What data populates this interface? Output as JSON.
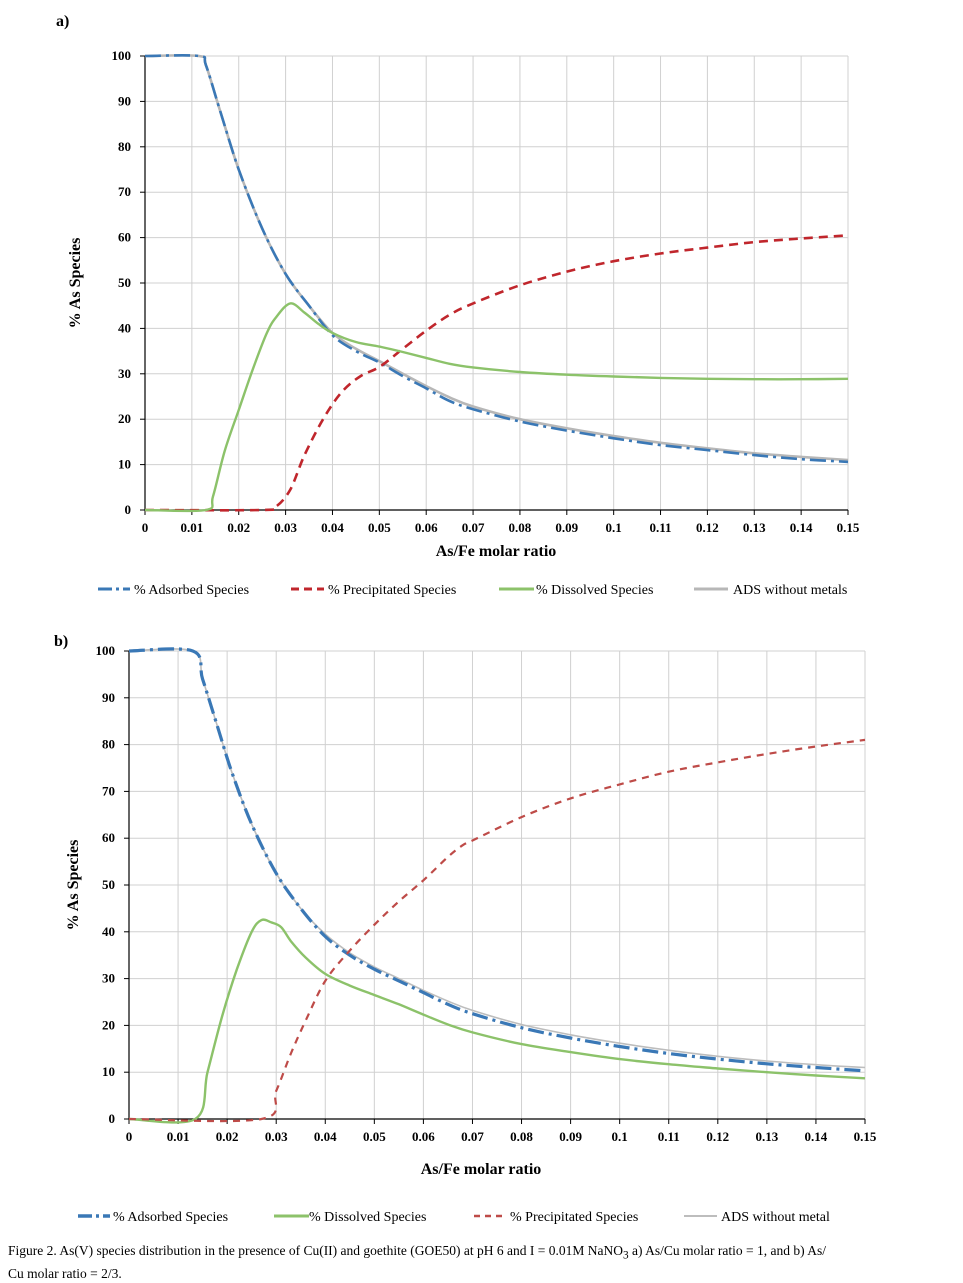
{
  "figure": {
    "caption_lines": [
      "Figure 2. As(V) species distribution in the presence of Cu(II) and goethite (GOE50) at pH 6 and  I = 0.01M NaNO",
      "3",
      " a) As/Cu molar ratio = 1, and b) As/",
      "Cu molar ratio = 2/3."
    ]
  },
  "colors": {
    "adsorbed": "#3a78b6",
    "precipitated_a": "#c0262c",
    "precipitated_b": "#be4b48",
    "dissolved": "#8cc26a",
    "ads_without_a": "#b7b7b7",
    "ads_without_b": "#bdbdbd",
    "grid": "#d0d0d0"
  },
  "chart_data": [
    {
      "panel_label": "a)",
      "type": "line",
      "xlabel": "As/Fe molar ratio",
      "ylabel": "% As Species",
      "xlim": [
        0,
        0.15
      ],
      "ylim": [
        0,
        100
      ],
      "xticks": [
        0,
        0.01,
        0.02,
        0.03,
        0.04,
        0.05,
        0.06,
        0.07,
        0.08,
        0.09,
        0.1,
        0.11,
        0.12,
        0.13,
        0.14,
        0.15
      ],
      "xtick_labels": [
        "0",
        "0.01",
        "0.02",
        "0.03",
        "0.04",
        "0.05",
        "0.06",
        "0.07",
        "0.08",
        "0.09",
        "0.1",
        "0.11",
        "0.12",
        "0.13",
        "0.14",
        "0.15"
      ],
      "yticks": [
        0,
        10,
        20,
        30,
        40,
        50,
        60,
        70,
        80,
        90,
        100
      ],
      "ytick_labels": [
        "0",
        "10",
        "20",
        "30",
        "40",
        "50",
        "60",
        "70",
        "80",
        "90",
        "100"
      ],
      "legend_position": "bottom",
      "series": [
        {
          "name": "% Adsorbed Species",
          "style": "dashdot",
          "color_key": "adsorbed",
          "x": [
            0,
            0.0115,
            0.013,
            0.016,
            0.02,
            0.025,
            0.03,
            0.035,
            0.04,
            0.045,
            0.05,
            0.055,
            0.06,
            0.065,
            0.07,
            0.08,
            0.09,
            0.1,
            0.11,
            0.12,
            0.13,
            0.14,
            0.15
          ],
          "y": [
            100,
            100,
            98,
            88,
            75,
            62,
            52,
            45,
            38.5,
            35,
            32.5,
            29.5,
            26.8,
            24,
            22.2,
            19.5,
            17.5,
            15.8,
            14.3,
            13.2,
            12.1,
            11.2,
            10.6
          ]
        },
        {
          "name": "% Precipitated Species",
          "style": "dash",
          "color_key": "precipitated_a",
          "x": [
            0,
            0.025,
            0.028,
            0.031,
            0.034,
            0.038,
            0.042,
            0.046,
            0.05,
            0.055,
            0.06,
            0.065,
            0.07,
            0.08,
            0.09,
            0.1,
            0.11,
            0.12,
            0.13,
            0.14,
            0.15
          ],
          "y": [
            0,
            0,
            0.8,
            4.5,
            12,
            20,
            26,
            29.5,
            31.5,
            35.5,
            39.5,
            43,
            45.5,
            49.5,
            52.5,
            54.8,
            56.5,
            57.8,
            59,
            59.8,
            60.5
          ]
        },
        {
          "name": "% Dissolved Species",
          "style": "solid",
          "color_key": "dissolved",
          "x": [
            0,
            0.013,
            0.0145,
            0.017,
            0.02,
            0.023,
            0.026,
            0.028,
            0.031,
            0.034,
            0.037,
            0.04,
            0.045,
            0.05,
            0.055,
            0.06,
            0.065,
            0.07,
            0.08,
            0.09,
            0.1,
            0.11,
            0.12,
            0.13,
            0.14,
            0.15
          ],
          "y": [
            0,
            0,
            3,
            13,
            22,
            31,
            39,
            42.5,
            45.5,
            43.5,
            41,
            39,
            37,
            36,
            34.8,
            33.5,
            32.2,
            31.4,
            30.4,
            29.8,
            29.4,
            29.1,
            28.9,
            28.8,
            28.8,
            28.9
          ]
        },
        {
          "name": "ADS without metals",
          "style": "solid",
          "color_key": "ads_without_a",
          "x": [
            0,
            0.0115,
            0.013,
            0.016,
            0.02,
            0.025,
            0.03,
            0.035,
            0.04,
            0.045,
            0.05,
            0.055,
            0.06,
            0.065,
            0.07,
            0.08,
            0.09,
            0.1,
            0.11,
            0.12,
            0.13,
            0.14,
            0.15
          ],
          "y": [
            100,
            100,
            98,
            88,
            75,
            62,
            52,
            45,
            39,
            35.5,
            32.8,
            30,
            27.3,
            24.8,
            22.8,
            20,
            18,
            16.3,
            14.8,
            13.6,
            12.5,
            11.7,
            11
          ]
        }
      ]
    },
    {
      "panel_label": "b)",
      "type": "line",
      "xlabel": "As/Fe molar ratio",
      "ylabel": "% As Species",
      "xlim": [
        0,
        0.15
      ],
      "ylim": [
        0,
        100
      ],
      "xticks": [
        0,
        0.01,
        0.02,
        0.03,
        0.04,
        0.05,
        0.06,
        0.07,
        0.08,
        0.09,
        0.1,
        0.11,
        0.12,
        0.13,
        0.14,
        0.15
      ],
      "xtick_labels": [
        "0",
        "0.01",
        "0.02",
        "0.03",
        "0.04",
        "0.05",
        "0.06",
        "0.07",
        "0.08",
        "0.09",
        "0.1",
        "0.11",
        "0.12",
        "0.13",
        "0.14",
        "0.15"
      ],
      "yticks": [
        0,
        10,
        20,
        30,
        40,
        50,
        60,
        70,
        80,
        90,
        100
      ],
      "ytick_labels": [
        "0",
        "10",
        "20",
        "30",
        "40",
        "50",
        "60",
        "70",
        "80",
        "90",
        "100"
      ],
      "legend_position": "bottom",
      "series": [
        {
          "name": "% Adsorbed Species",
          "style": "dashdot",
          "color_key": "adsorbed",
          "x": [
            0,
            0.013,
            0.015,
            0.018,
            0.021,
            0.025,
            0.03,
            0.035,
            0.04,
            0.045,
            0.05,
            0.055,
            0.06,
            0.065,
            0.07,
            0.08,
            0.09,
            0.1,
            0.11,
            0.12,
            0.13,
            0.14,
            0.15
          ],
          "y": [
            100,
            100,
            94,
            84,
            74,
            63,
            52.5,
            45,
            39,
            35,
            32,
            29.5,
            27,
            24.5,
            22.5,
            19.5,
            17.3,
            15.5,
            14,
            12.8,
            11.8,
            11,
            10.3
          ]
        },
        {
          "name": "% Dissolved Species",
          "style": "solid",
          "color_key": "dissolved",
          "x": [
            0,
            0.0135,
            0.016,
            0.019,
            0.022,
            0.025,
            0.027,
            0.029,
            0.031,
            0.033,
            0.036,
            0.04,
            0.045,
            0.05,
            0.055,
            0.06,
            0.065,
            0.07,
            0.08,
            0.09,
            0.1,
            0.11,
            0.12,
            0.13,
            0.14,
            0.15
          ],
          "y": [
            0,
            0,
            10,
            22,
            32,
            40,
            42.5,
            42,
            41,
            38,
            34.5,
            31,
            28.5,
            26.5,
            24.5,
            22.3,
            20.2,
            18.5,
            16,
            14.3,
            12.8,
            11.7,
            10.8,
            10,
            9.3,
            8.7
          ]
        },
        {
          "name": "% Precipitated Species",
          "style": "dash",
          "color_key": "precipitated_b",
          "x": [
            0,
            0.027,
            0.03,
            0.033,
            0.036,
            0.04,
            0.045,
            0.05,
            0.055,
            0.06,
            0.065,
            0.068,
            0.07,
            0.08,
            0.09,
            0.1,
            0.11,
            0.12,
            0.13,
            0.14,
            0.15
          ],
          "y": [
            0,
            0,
            6,
            14,
            21,
            29.5,
            36,
            41.5,
            46.5,
            51,
            56,
            58.5,
            59.5,
            64.5,
            68.5,
            71.5,
            74.2,
            76.2,
            78,
            79.6,
            81
          ]
        },
        {
          "name": "ADS without metal",
          "style": "solid",
          "color_key": "ads_without_b",
          "x": [
            0,
            0.013,
            0.015,
            0.018,
            0.021,
            0.025,
            0.03,
            0.035,
            0.04,
            0.045,
            0.05,
            0.055,
            0.06,
            0.065,
            0.07,
            0.08,
            0.09,
            0.1,
            0.11,
            0.12,
            0.13,
            0.14,
            0.15
          ],
          "y": [
            100,
            100,
            94,
            84,
            74,
            63,
            52.5,
            45,
            39.5,
            35.5,
            32.5,
            30,
            27.5,
            25.2,
            23.2,
            20.2,
            18,
            16.2,
            14.7,
            13.4,
            12.4,
            11.6,
            11
          ]
        }
      ]
    }
  ]
}
